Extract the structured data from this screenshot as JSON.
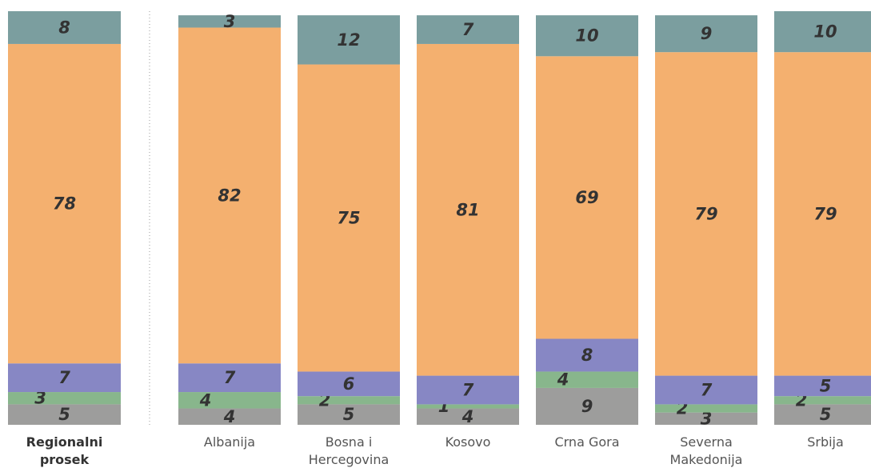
{
  "chart_data": {
    "type": "stacked-bar",
    "categories": [
      "Regionalni prosek",
      "Albanija",
      "Bosna i Hercegovina",
      "Kosovo",
      "Crna Gora",
      "Severna Makedonija",
      "Srbija"
    ],
    "series": [
      {
        "color": "#9d9d9c",
        "values": [
          5,
          4,
          5,
          4,
          9,
          3,
          5
        ]
      },
      {
        "color": "#88b68c",
        "values": [
          3,
          4,
          2,
          1,
          4,
          2,
          2
        ]
      },
      {
        "color": "#8787c4",
        "values": [
          7,
          7,
          6,
          7,
          8,
          7,
          5
        ]
      },
      {
        "color": "#f4b06f",
        "values": [
          78,
          82,
          75,
          81,
          69,
          79,
          79
        ]
      },
      {
        "color": "#7b9e9f",
        "values": [
          8,
          3,
          12,
          7,
          10,
          9,
          10
        ]
      }
    ],
    "ylim": [
      0,
      101
    ]
  }
}
